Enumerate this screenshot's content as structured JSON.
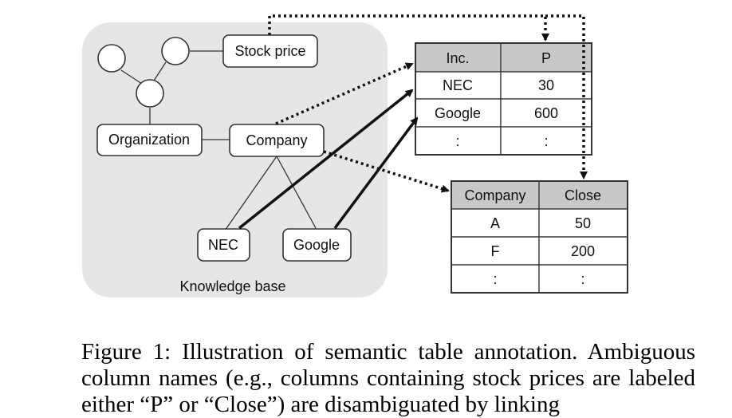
{
  "knowledge_base": {
    "label": "Knowledge base",
    "nodes": {
      "stock_price": "Stock price",
      "organization": "Organization",
      "company": "Company",
      "nec": "NEC",
      "google": "Google"
    }
  },
  "table1": {
    "headers": [
      "Inc.",
      "P"
    ],
    "rows": [
      [
        "NEC",
        "30"
      ],
      [
        "Google",
        "600"
      ],
      [
        ":",
        ":"
      ]
    ]
  },
  "table2": {
    "headers": [
      "Company",
      "Close"
    ],
    "rows": [
      [
        "A",
        "50"
      ],
      [
        "F",
        "200"
      ],
      [
        ":",
        ":"
      ]
    ]
  },
  "caption": "Figure 1: Illustration of semantic table annotation. Ambiguous column names (e.g., columns containing stock prices are labeled either “P” or “Close”) are disambiguated by linking"
}
